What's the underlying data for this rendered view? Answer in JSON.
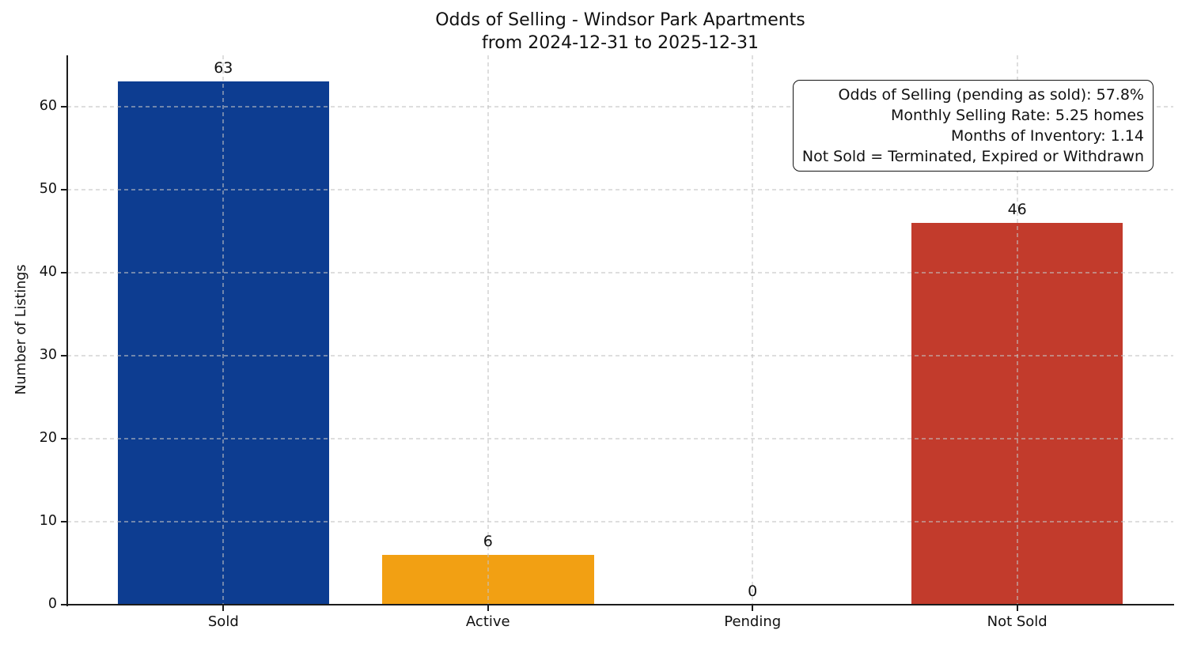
{
  "chart_data": {
    "type": "bar",
    "title_line1": "Odds of Selling - Windsor Park Apartments",
    "title_line2": "from 2024-12-31 to 2025-12-31",
    "ylabel": "Number of Listings",
    "xlabel": "",
    "categories": [
      "Sold",
      "Active",
      "Pending",
      "Not Sold"
    ],
    "values": [
      63,
      6,
      0,
      46
    ],
    "bar_value_labels": [
      "63",
      "6",
      "0",
      "46"
    ],
    "bar_colors": [
      "#0d3d91",
      "#f2a013",
      "#808080",
      "#c23b2c"
    ],
    "yticks": [
      0,
      10,
      20,
      30,
      40,
      50,
      60
    ],
    "ylim": [
      0,
      66.15
    ],
    "grid": "dashed",
    "legend_position": "none",
    "axis_color": "#1c1c1c",
    "grid_color": "#c3c3c3",
    "annotation_box": {
      "lines": [
        "Odds of Selling (pending as sold): 57.8%",
        "Monthly Selling Rate: 5.25 homes",
        "Months of Inventory: 1.14",
        "Not Sold = Terminated, Expired or Withdrawn"
      ]
    }
  }
}
